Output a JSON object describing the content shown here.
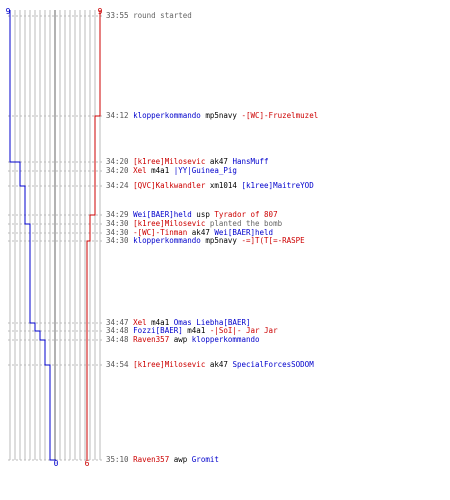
{
  "scoreboard": {
    "top_left_score": "9",
    "top_right_score": "9",
    "bottom_left_score": "0",
    "bottom_right_score": "6",
    "colors": {
      "blue_team": "#0000cc",
      "red_team": "#cc0000",
      "grid": "#aaaaaa"
    }
  },
  "events": [
    {
      "time": "33:55",
      "parts": [
        {
          "text": "round started",
          "style": "note"
        }
      ]
    },
    {
      "time": "34:12",
      "parts": [
        {
          "text": "klopperkommando",
          "style": "blue"
        },
        {
          "text": " mp5navy ",
          "style": "neutral"
        },
        {
          "text": "-[WC]-Fruzelmuzel",
          "style": "red"
        }
      ]
    },
    {
      "time": "34:20",
      "parts": [
        {
          "text": "[k1ree]Milosevic",
          "style": "red"
        },
        {
          "text": " ak47 ",
          "style": "neutral"
        },
        {
          "text": "HansMuff",
          "style": "blue"
        }
      ]
    },
    {
      "time": "34:20",
      "parts": [
        {
          "text": "Xel",
          "style": "red"
        },
        {
          "text": " m4a1 ",
          "style": "neutral"
        },
        {
          "text": "|YY|Guinea_Pig",
          "style": "blue"
        }
      ]
    },
    {
      "time": "34:24",
      "parts": [
        {
          "text": "[QVC]Kalkwandler",
          "style": "red"
        },
        {
          "text": " xm1014 ",
          "style": "neutral"
        },
        {
          "text": "[k1ree]MaitreYOD",
          "style": "blue"
        }
      ]
    },
    {
      "time": "34:29",
      "parts": [
        {
          "text": "Wei[BAER]held",
          "style": "blue"
        },
        {
          "text": " usp ",
          "style": "neutral"
        },
        {
          "text": "Tyrador of 807",
          "style": "red"
        }
      ]
    },
    {
      "time": "34:30",
      "parts": [
        {
          "text": "[k1ree]Milosevic",
          "style": "red"
        },
        {
          "text": " planted the bomb",
          "style": "note"
        }
      ]
    },
    {
      "time": "34:30",
      "parts": [
        {
          "text": "-[WC]-Tinman",
          "style": "red"
        },
        {
          "text": " ak47 ",
          "style": "neutral"
        },
        {
          "text": "Wei[BAER]held",
          "style": "blue"
        }
      ]
    },
    {
      "time": "34:30",
      "parts": [
        {
          "text": "klopperkommando",
          "style": "blue"
        },
        {
          "text": " mp5navy ",
          "style": "neutral"
        },
        {
          "text": "-=]T(T[=-RASPE",
          "style": "pink"
        }
      ]
    },
    {
      "time": "34:47",
      "parts": [
        {
          "text": "Xel",
          "style": "red"
        },
        {
          "text": " m4a1 ",
          "style": "neutral"
        },
        {
          "text": "Omas Liebha[BAER]",
          "style": "blue"
        }
      ]
    },
    {
      "time": "34:48",
      "parts": [
        {
          "text": "Fozzi[BAER]",
          "style": "blue"
        },
        {
          "text": " m4a1 ",
          "style": "neutral"
        },
        {
          "text": "-|SoI|- Jar Jar",
          "style": "red"
        }
      ]
    },
    {
      "time": "34:48",
      "parts": [
        {
          "text": "Raven357",
          "style": "red"
        },
        {
          "text": " awp ",
          "style": "neutral"
        },
        {
          "text": "klopperkommando",
          "style": "blue"
        }
      ]
    },
    {
      "time": "34:54",
      "parts": [
        {
          "text": "[k1ree]Milosevic",
          "style": "red"
        },
        {
          "text": " ak47 ",
          "style": "neutral"
        },
        {
          "text": "SpecialForcesSODOM",
          "style": "blue"
        }
      ]
    },
    {
      "time": "35:10",
      "parts": [
        {
          "text": "Raven357",
          "style": "red"
        },
        {
          "text": " awp ",
          "style": "neutral"
        },
        {
          "text": "Gromit",
          "style": "blue"
        }
      ]
    }
  ]
}
